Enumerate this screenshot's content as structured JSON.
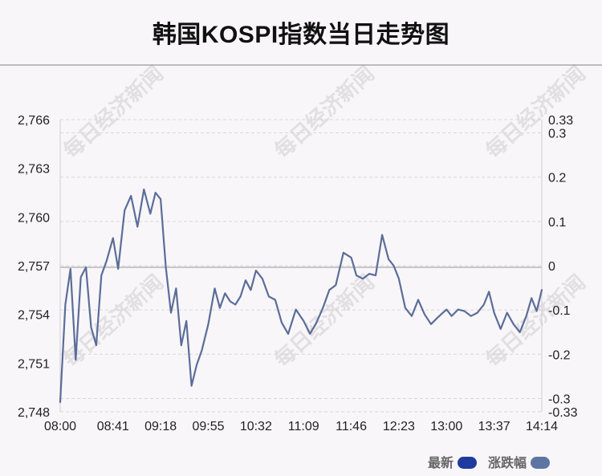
{
  "chart_data": {
    "type": "line",
    "title": "韩国KOSPI指数当日走势图",
    "x_tick_labels": [
      "08:00",
      "08:41",
      "09:18",
      "09:55",
      "10:32",
      "11:09",
      "11:46",
      "12:23",
      "13:00",
      "13:37",
      "14:14"
    ],
    "y_left_ticks": [
      "2,766",
      "2,763",
      "2,760",
      "2,757",
      "2,754",
      "2,751",
      "2,748"
    ],
    "y_right_ticks": [
      "0.33",
      "0.3",
      "0.2",
      "0.1",
      "0",
      "-0.1",
      "-0.2",
      "-0.3",
      "-0.33"
    ],
    "ylim_left": [
      2748,
      2766
    ],
    "ylim_right": [
      -0.33,
      0.33
    ],
    "baseline_value": 2756.9,
    "grid": true,
    "legend": "bottom-right",
    "colors": {
      "line": "#5b6d99",
      "legend_latest": "#1f3b9e",
      "legend_change": "#5e75a3"
    },
    "series": [
      {
        "name": "最新",
        "x": [
          "08:00",
          "08:04",
          "08:08",
          "08:12",
          "08:16",
          "08:20",
          "08:24",
          "08:28",
          "08:32",
          "08:36",
          "08:41",
          "08:45",
          "08:50",
          "08:55",
          "09:00",
          "09:05",
          "09:10",
          "09:14",
          "09:18",
          "09:22",
          "09:26",
          "09:30",
          "09:34",
          "09:38",
          "09:42",
          "09:46",
          "09:50",
          "09:55",
          "10:00",
          "10:04",
          "10:08",
          "10:12",
          "10:16",
          "10:20",
          "10:24",
          "10:28",
          "10:32",
          "10:37",
          "10:42",
          "10:47",
          "10:52",
          "10:57",
          "11:03",
          "11:09",
          "11:14",
          "11:19",
          "11:24",
          "11:29",
          "11:34",
          "11:40",
          "11:46",
          "11:50",
          "11:55",
          "12:00",
          "12:05",
          "12:10",
          "12:15",
          "12:19",
          "12:23",
          "12:28",
          "12:33",
          "12:38",
          "12:43",
          "12:48",
          "12:53",
          "13:00",
          "13:04",
          "13:09",
          "13:14",
          "13:19",
          "13:24",
          "13:29",
          "13:33",
          "13:37",
          "13:42",
          "13:47",
          "13:52",
          "13:57",
          "14:02",
          "14:06",
          "14:10",
          "14:14"
        ],
        "values": [
          2748.6,
          2754.6,
          2756.8,
          2751.2,
          2756.3,
          2756.9,
          2753.2,
          2752.1,
          2756.4,
          2757.3,
          2758.7,
          2756.8,
          2760.4,
          2761.3,
          2759.4,
          2761.7,
          2760.2,
          2761.5,
          2761.1,
          2756.9,
          2754.1,
          2755.6,
          2752.1,
          2753.6,
          2749.6,
          2750.9,
          2751.8,
          2753.4,
          2755.6,
          2754.4,
          2755.3,
          2754.8,
          2754.6,
          2755.1,
          2756.1,
          2755.5,
          2756.7,
          2756.2,
          2755.1,
          2754.9,
          2753.5,
          2752.8,
          2754.3,
          2753.6,
          2752.8,
          2753.5,
          2754.4,
          2755.5,
          2755.8,
          2757.8,
          2757.5,
          2756.4,
          2756.2,
          2756.5,
          2756.4,
          2758.9,
          2757.4,
          2757.0,
          2756.2,
          2754.4,
          2753.9,
          2754.9,
          2754.0,
          2753.4,
          2753.8,
          2754.3,
          2753.9,
          2754.3,
          2754.2,
          2753.9,
          2754.1,
          2754.6,
          2755.4,
          2754.1,
          2753.1,
          2754.1,
          2753.4,
          2752.9,
          2753.9,
          2755.0,
          2754.2,
          2755.5
        ]
      }
    ]
  },
  "legend": {
    "latest_label": "最新",
    "change_label": "涨跌幅"
  },
  "watermark": "每日经济新闻"
}
